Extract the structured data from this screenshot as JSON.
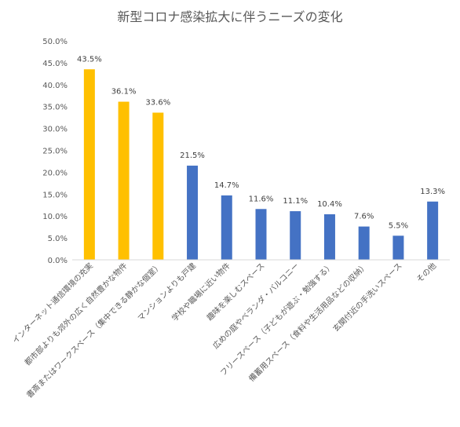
{
  "chart_data": {
    "type": "bar",
    "title": "新型コロナ感染拡大に伴うニーズの変化",
    "categories": [
      "インターネット通信環境の充実",
      "都市部よりも郊外の広く自然豊かな物件",
      "書斎またはワークスペース（集中できる静かな個室）",
      "マンションよりも戸建",
      "学校や職場に近い物件",
      "趣味を楽しむスペース",
      "広めの庭やベランダ・バルコニー",
      "フリースペース（子どもが遊ぶ・勉強する）",
      "備蓄用スペース（食料や生活用品などの収納）",
      "玄関付近の手洗いスペース",
      "その他"
    ],
    "values": [
      43.5,
      36.1,
      33.6,
      21.5,
      14.7,
      11.6,
      11.1,
      10.4,
      7.6,
      5.5,
      13.3
    ],
    "data_labels": [
      "43.5%",
      "36.1%",
      "33.6%",
      "21.5%",
      "14.7%",
      "11.6%",
      "11.1%",
      "10.4%",
      "7.6%",
      "5.5%",
      "13.3%"
    ],
    "bar_colors": [
      "#FFC000",
      "#FFC000",
      "#FFC000",
      "#4472C4",
      "#4472C4",
      "#4472C4",
      "#4472C4",
      "#4472C4",
      "#4472C4",
      "#4472C4",
      "#4472C4"
    ],
    "ylim": [
      0,
      50
    ],
    "y_ticks": [
      "0.0%",
      "5.0%",
      "10.0%",
      "15.0%",
      "20.0%",
      "25.0%",
      "30.0%",
      "35.0%",
      "40.0%",
      "45.0%",
      "50.0%"
    ],
    "xlabel": "",
    "ylabel": "",
    "grid": false,
    "legend": "none"
  }
}
